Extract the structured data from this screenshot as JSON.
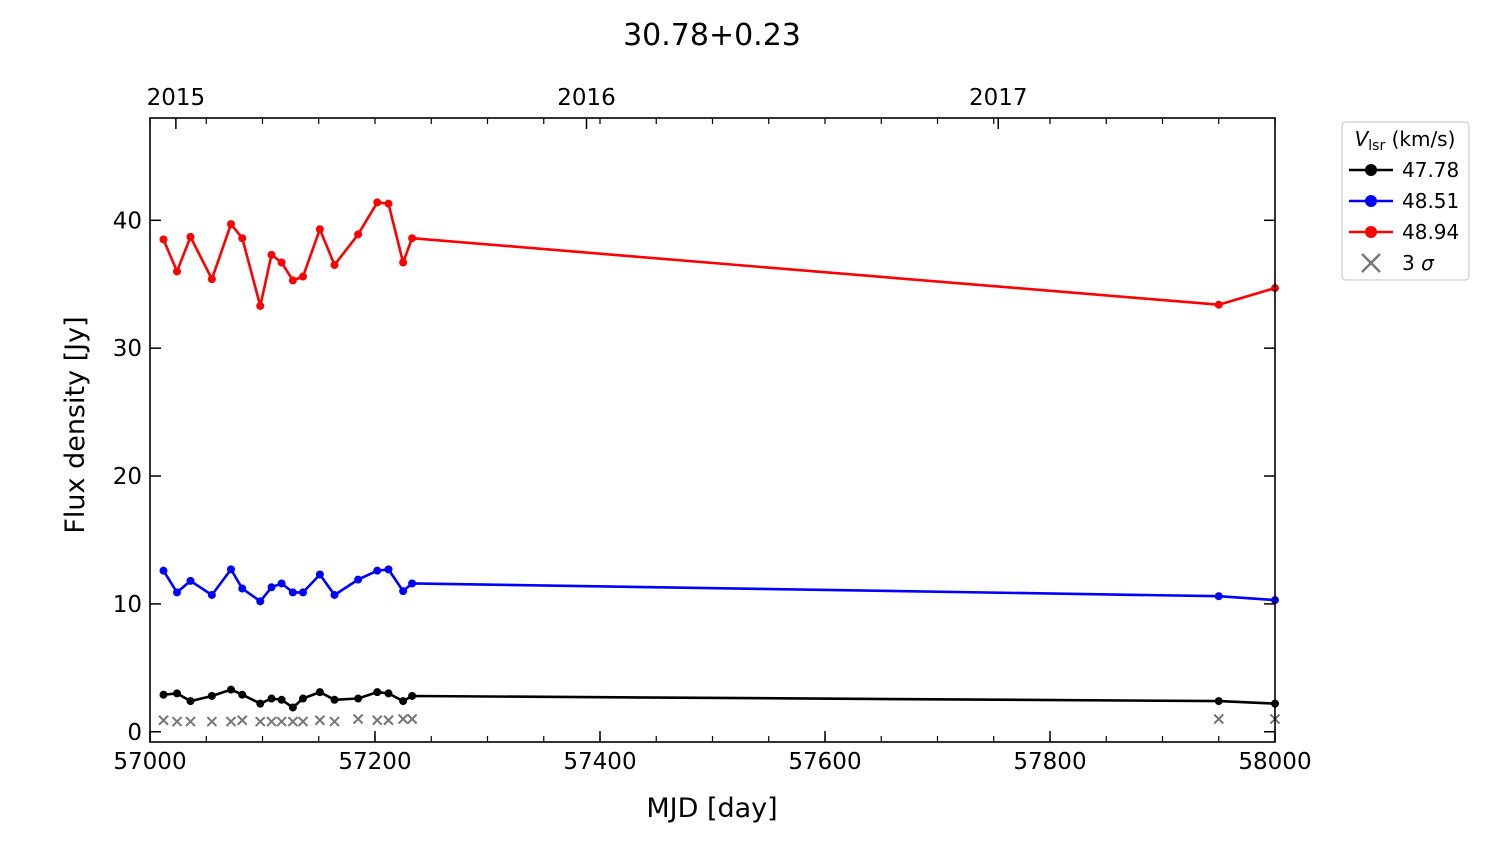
{
  "chart_data": {
    "type": "line",
    "title": "30.78+0.23",
    "xlabel": "MJD [day]",
    "ylabel": "Flux density [Jy]",
    "xlim": [
      57000,
      58000
    ],
    "ylim": [
      -0.8,
      48
    ],
    "xticks": [
      57000,
      57200,
      57400,
      57600,
      57800,
      58000
    ],
    "yticks": [
      0,
      10,
      20,
      30,
      40
    ],
    "top_axis": {
      "ticks": [
        {
          "label": "2015",
          "x": 57023
        },
        {
          "label": "2016",
          "x": 57388
        },
        {
          "label": "2017",
          "x": 57754
        }
      ]
    },
    "legend": {
      "title_symbol": "V",
      "title_subscript": "lsr",
      "title_units": "(km/s)",
      "position": "upper right, outside plot",
      "sigma_label_prefix": "3 ",
      "sigma_label_symbol": "σ"
    },
    "series": [
      {
        "name": "47.78",
        "color": "#000000",
        "x": [
          57012,
          57024,
          57036,
          57055,
          57072,
          57082,
          57098,
          57108,
          57117,
          57127,
          57136,
          57151,
          57164,
          57185,
          57202,
          57212,
          57225,
          57233,
          57950,
          58000
        ],
        "values": [
          2.9,
          3.0,
          2.4,
          2.8,
          3.3,
          2.9,
          2.2,
          2.6,
          2.5,
          1.9,
          2.6,
          3.1,
          2.5,
          2.6,
          3.1,
          3.0,
          2.4,
          2.8,
          2.4,
          2.2
        ]
      },
      {
        "name": "48.51",
        "color": "#0000ff",
        "x": [
          57012,
          57024,
          57036,
          57055,
          57072,
          57082,
          57098,
          57108,
          57117,
          57127,
          57136,
          57151,
          57164,
          57185,
          57202,
          57212,
          57225,
          57233,
          57950,
          58000
        ],
        "values": [
          12.6,
          10.9,
          11.8,
          10.7,
          12.7,
          11.2,
          10.2,
          11.3,
          11.6,
          10.9,
          10.9,
          12.3,
          10.7,
          11.9,
          12.6,
          12.7,
          11.0,
          11.6,
          10.6,
          10.3
        ]
      },
      {
        "name": "48.94",
        "color": "#ff0000",
        "x": [
          57012,
          57024,
          57036,
          57055,
          57072,
          57082,
          57098,
          57108,
          57117,
          57127,
          57136,
          57151,
          57164,
          57185,
          57202,
          57212,
          57225,
          57233,
          57950,
          58000
        ],
        "values": [
          38.5,
          36.0,
          38.7,
          35.4,
          39.7,
          38.6,
          33.3,
          37.3,
          36.7,
          35.3,
          35.6,
          39.3,
          36.5,
          38.9,
          41.4,
          41.3,
          36.7,
          38.6,
          33.4,
          34.7
        ]
      }
    ],
    "sigma": {
      "name": "3 σ",
      "color": "#777777",
      "x": [
        57012,
        57024,
        57036,
        57055,
        57072,
        57082,
        57098,
        57108,
        57117,
        57127,
        57136,
        57151,
        57164,
        57185,
        57202,
        57212,
        57225,
        57233,
        57950,
        58000
      ],
      "values": [
        0.9,
        0.8,
        0.8,
        0.8,
        0.8,
        0.9,
        0.8,
        0.8,
        0.8,
        0.8,
        0.8,
        0.9,
        0.8,
        1.0,
        0.9,
        0.9,
        1.0,
        1.0,
        1.0,
        1.0
      ]
    }
  }
}
